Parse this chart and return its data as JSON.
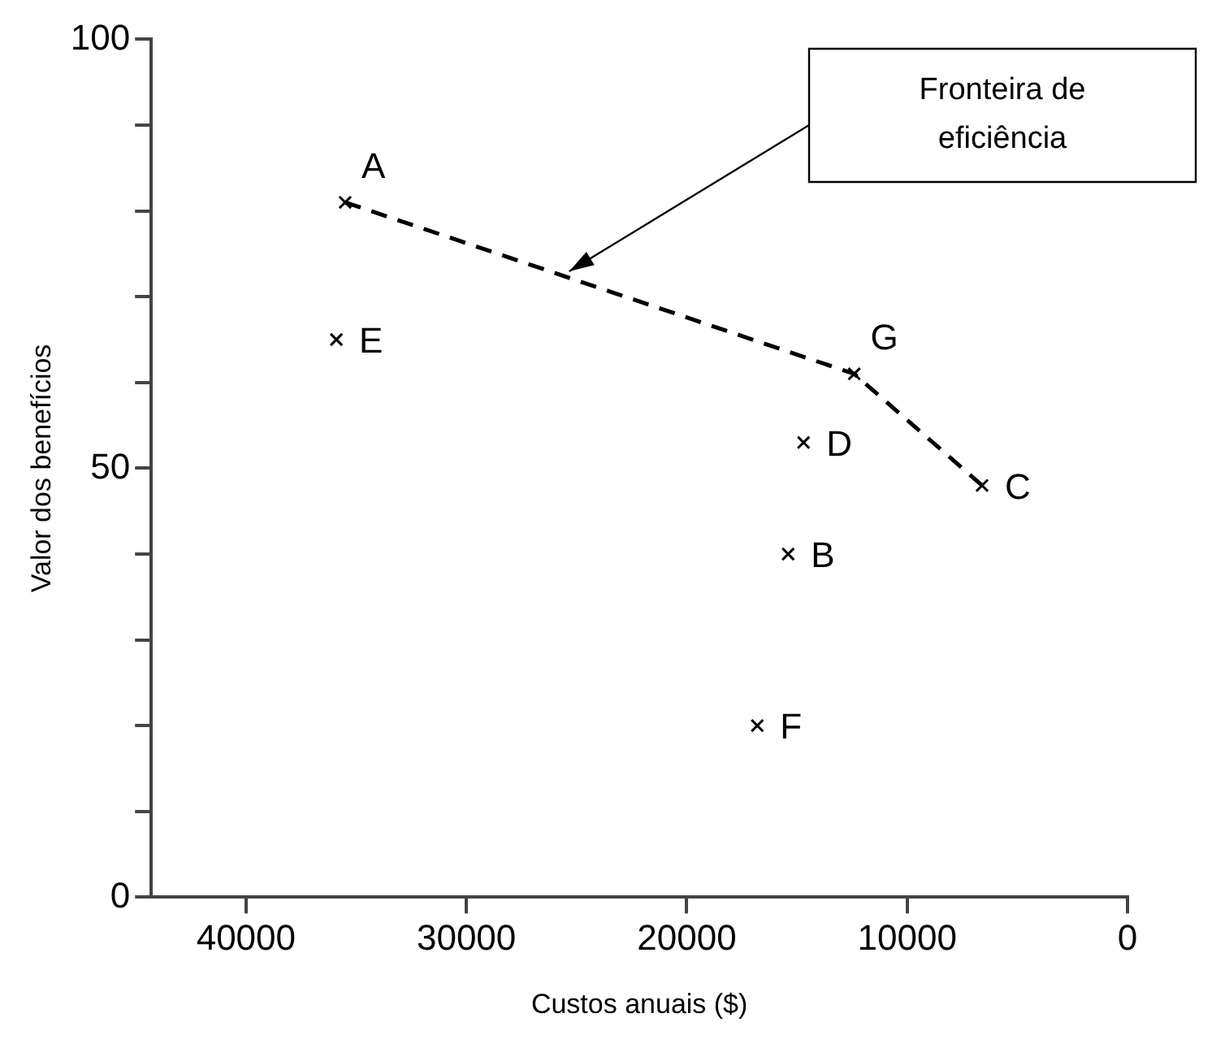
{
  "chart_data": {
    "type": "scatter",
    "xlabel": "Custos anuais ($)",
    "ylabel": "Valor dos benefícios",
    "xlim": [
      44300,
      0
    ],
    "xticks": [
      40000,
      30000,
      20000,
      10000,
      0
    ],
    "ylim": [
      0,
      100
    ],
    "yticks": [
      0,
      {
        "value": 10,
        "label": null
      },
      {
        "value": 20,
        "label": null
      },
      {
        "value": 30,
        "label": null
      },
      {
        "value": 40,
        "label": null
      },
      50,
      {
        "value": 60,
        "label": null
      },
      {
        "value": 70,
        "label": null
      },
      {
        "value": 80,
        "label": null
      },
      {
        "value": 90,
        "label": null
      },
      100
    ],
    "grid": false,
    "legend": false,
    "marker": "cross",
    "series": [
      {
        "color": "#000000",
        "x": [
          35500,
          15400,
          6600,
          14700,
          35900,
          16800,
          12400
        ],
        "values": [
          81,
          40,
          48,
          53,
          65,
          20,
          61
        ],
        "value_labels": [
          "A",
          "B",
          "C",
          "D",
          "E",
          "F",
          "G"
        ]
      },
      {
        "type": "line",
        "color": "#000000",
        "line_style": "dashed",
        "marker": "none",
        "x": [
          35500,
          12400,
          6600
        ],
        "values": [
          81,
          61,
          48
        ]
      }
    ],
    "annotations": [
      "Fronteira de eficiência"
    ]
  }
}
